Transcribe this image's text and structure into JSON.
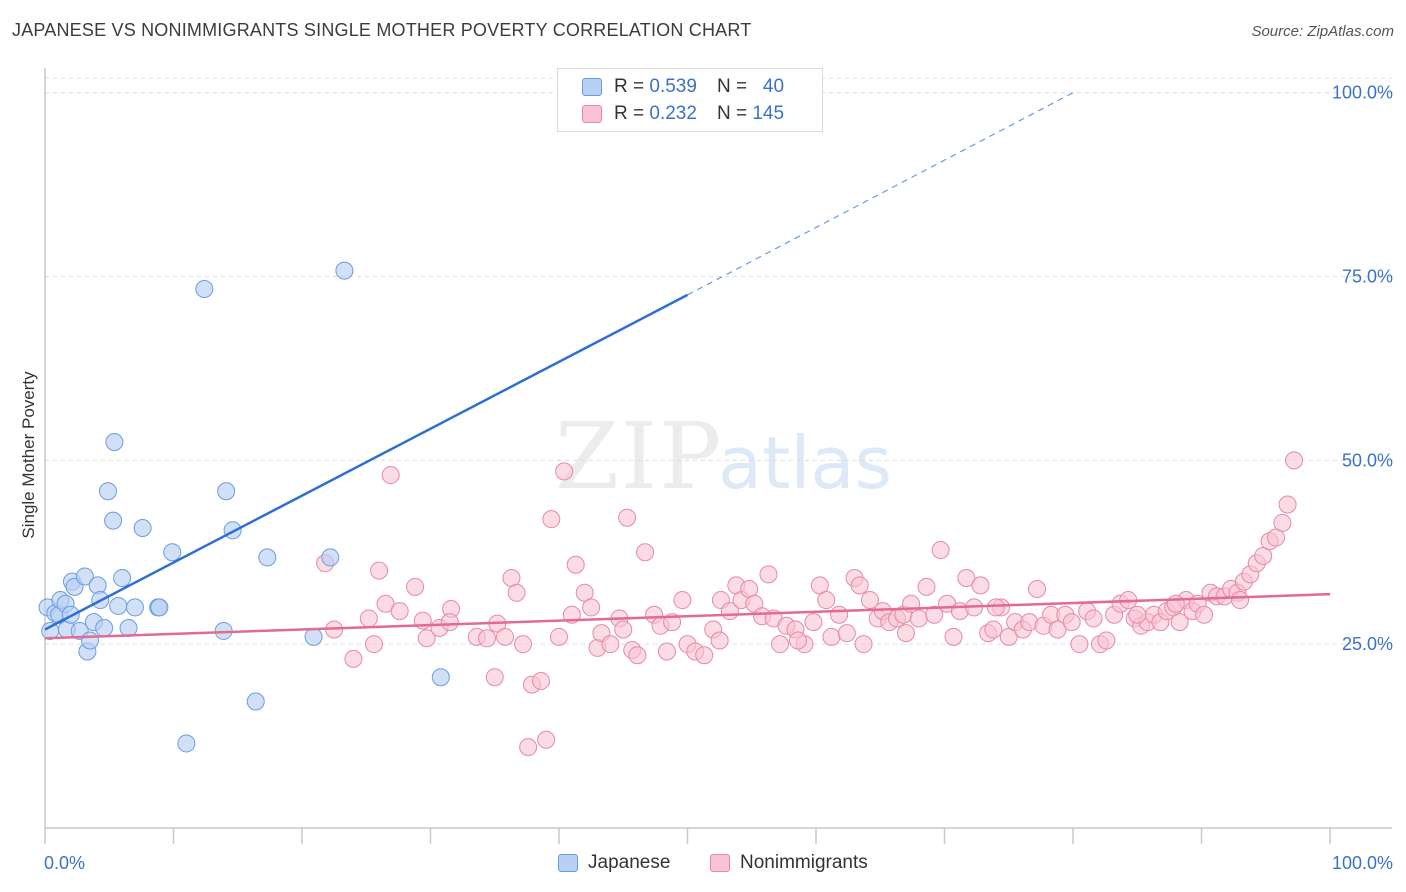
{
  "title": "JAPANESE VS NONIMMIGRANTS SINGLE MOTHER POVERTY CORRELATION CHART",
  "source": "Source: ZipAtlas.com",
  "watermark": {
    "zip": "ZIP",
    "atlas": "atlas"
  },
  "legend": {
    "rows": [
      {
        "r_label": "R =",
        "r_value": "0.539",
        "n_label": "N =",
        "n_value": "40"
      },
      {
        "r_label": "R =",
        "r_value": "0.232",
        "n_label": "N =",
        "n_value": "145"
      }
    ]
  },
  "colors": {
    "japanese_fill": "#b8d0f3",
    "japanese_stroke": "#6a9de0",
    "japanese_line": "#2a6fd1",
    "nonimm_fill": "#f9c3d2",
    "nonimm_stroke": "#e889a7",
    "nonimm_line": "#e36a93",
    "tick_label": "#3a72c8",
    "grid": "#dcdcdc"
  },
  "chart_data": {
    "type": "scatter",
    "title": "JAPANESE VS NONIMMIGRANTS SINGLE MOTHER POVERTY CORRELATION CHART",
    "xlabel": "",
    "ylabel": "Single Mother Poverty",
    "xlim": [
      0,
      100
    ],
    "ylim": [
      0,
      102
    ],
    "x_tick_labels": [
      "0.0%",
      "100.0%"
    ],
    "y_ticks": [
      {
        "value": 25,
        "label": "25.0%"
      },
      {
        "value": 50,
        "label": "50.0%"
      },
      {
        "value": 75,
        "label": "75.0%"
      },
      {
        "value": 100,
        "label": "100.0%"
      }
    ],
    "grid": true,
    "legend_position": "top-center",
    "series": [
      {
        "name": "Japanese",
        "R": 0.539,
        "N": 40,
        "trend": {
          "x0": 0,
          "y0": 27.0,
          "x1": 50,
          "y1": 72.5,
          "dashed_to_x": 80,
          "dashed_to_y": 100
        },
        "points": [
          [
            0.2,
            30.0
          ],
          [
            0.4,
            26.8
          ],
          [
            0.8,
            29.2
          ],
          [
            1.1,
            29.0
          ],
          [
            1.2,
            31.0
          ],
          [
            1.6,
            30.5
          ],
          [
            1.7,
            27.0
          ],
          [
            2.0,
            29.0
          ],
          [
            2.1,
            33.5
          ],
          [
            2.3,
            32.8
          ],
          [
            2.7,
            26.8
          ],
          [
            3.1,
            34.2
          ],
          [
            3.3,
            24.0
          ],
          [
            3.5,
            25.5
          ],
          [
            3.8,
            28.0
          ],
          [
            4.1,
            33.0
          ],
          [
            4.3,
            31.0
          ],
          [
            4.6,
            27.2
          ],
          [
            4.9,
            45.8
          ],
          [
            5.3,
            41.8
          ],
          [
            5.4,
            52.5
          ],
          [
            5.7,
            30.2
          ],
          [
            6.0,
            34.0
          ],
          [
            6.5,
            27.2
          ],
          [
            7.0,
            30.0
          ],
          [
            7.6,
            40.8
          ],
          [
            8.8,
            30.0
          ],
          [
            8.9,
            30.0
          ],
          [
            9.9,
            37.5
          ],
          [
            11.0,
            11.5
          ],
          [
            12.4,
            73.3
          ],
          [
            13.9,
            26.8
          ],
          [
            14.1,
            45.8
          ],
          [
            14.6,
            40.5
          ],
          [
            16.4,
            17.2
          ],
          [
            17.3,
            36.8
          ],
          [
            20.9,
            26.0
          ],
          [
            22.2,
            36.8
          ],
          [
            23.3,
            75.8
          ],
          [
            30.8,
            20.5
          ]
        ]
      },
      {
        "name": "Nonimmigrants",
        "R": 0.232,
        "N": 145,
        "trend": {
          "x0": 0,
          "y0": 25.8,
          "x1": 100,
          "y1": 31.8
        },
        "points": [
          [
            21.8,
            36.0
          ],
          [
            24.0,
            23.0
          ],
          [
            25.2,
            28.5
          ],
          [
            25.6,
            25.0
          ],
          [
            26.0,
            35.0
          ],
          [
            26.5,
            30.5
          ],
          [
            26.9,
            48.0
          ],
          [
            27.6,
            29.5
          ],
          [
            28.8,
            32.8
          ],
          [
            29.4,
            28.2
          ],
          [
            29.7,
            25.8
          ],
          [
            30.7,
            27.2
          ],
          [
            31.6,
            29.8
          ],
          [
            33.6,
            26.0
          ],
          [
            34.4,
            25.8
          ],
          [
            35.0,
            20.5
          ],
          [
            35.2,
            27.8
          ],
          [
            35.8,
            26.0
          ],
          [
            36.3,
            34.0
          ],
          [
            36.7,
            32.0
          ],
          [
            37.2,
            25.0
          ],
          [
            37.6,
            11.0
          ],
          [
            37.9,
            19.5
          ],
          [
            38.6,
            20.0
          ],
          [
            39.0,
            12.0
          ],
          [
            39.4,
            42.0
          ],
          [
            40.4,
            48.5
          ],
          [
            41.0,
            29.0
          ],
          [
            41.3,
            35.8
          ],
          [
            42.0,
            32.0
          ],
          [
            42.5,
            30.0
          ],
          [
            43.0,
            24.5
          ],
          [
            43.3,
            26.5
          ],
          [
            44.0,
            25.0
          ],
          [
            44.7,
            28.5
          ],
          [
            45.3,
            42.2
          ],
          [
            45.7,
            24.2
          ],
          [
            46.1,
            23.5
          ],
          [
            46.7,
            37.5
          ],
          [
            47.4,
            29.0
          ],
          [
            47.9,
            27.5
          ],
          [
            48.4,
            24.0
          ],
          [
            48.8,
            28.0
          ],
          [
            49.6,
            31.0
          ],
          [
            50.0,
            25.0
          ],
          [
            50.6,
            24.0
          ],
          [
            51.3,
            23.5
          ],
          [
            52.0,
            27.0
          ],
          [
            52.6,
            31.0
          ],
          [
            53.3,
            29.5
          ],
          [
            53.8,
            33.0
          ],
          [
            54.2,
            31.0
          ],
          [
            54.8,
            32.5
          ],
          [
            55.2,
            30.5
          ],
          [
            55.8,
            28.8
          ],
          [
            56.3,
            34.5
          ],
          [
            56.7,
            28.5
          ],
          [
            57.2,
            25.0
          ],
          [
            57.7,
            27.5
          ],
          [
            58.4,
            27.0
          ],
          [
            59.1,
            25.0
          ],
          [
            59.8,
            28.0
          ],
          [
            60.3,
            33.0
          ],
          [
            60.8,
            31.0
          ],
          [
            61.2,
            26.0
          ],
          [
            61.8,
            29.0
          ],
          [
            62.4,
            26.5
          ],
          [
            63.0,
            34.0
          ],
          [
            63.4,
            33.0
          ],
          [
            64.2,
            31.0
          ],
          [
            64.8,
            28.5
          ],
          [
            65.2,
            29.5
          ],
          [
            65.7,
            28.0
          ],
          [
            66.3,
            28.5
          ],
          [
            66.8,
            29.0
          ],
          [
            67.4,
            30.5
          ],
          [
            68.0,
            28.5
          ],
          [
            68.6,
            32.8
          ],
          [
            69.2,
            29.0
          ],
          [
            69.7,
            37.8
          ],
          [
            70.2,
            30.5
          ],
          [
            70.7,
            26.0
          ],
          [
            71.2,
            29.5
          ],
          [
            71.7,
            34.0
          ],
          [
            72.3,
            30.0
          ],
          [
            72.8,
            33.0
          ],
          [
            73.4,
            26.5
          ],
          [
            73.8,
            27.0
          ],
          [
            74.4,
            30.0
          ],
          [
            75.0,
            26.0
          ],
          [
            75.5,
            28.0
          ],
          [
            76.1,
            27.0
          ],
          [
            76.6,
            28.0
          ],
          [
            77.2,
            32.5
          ],
          [
            77.7,
            27.5
          ],
          [
            78.3,
            29.0
          ],
          [
            78.8,
            27.0
          ],
          [
            79.4,
            29.0
          ],
          [
            79.9,
            28.0
          ],
          [
            80.5,
            25.0
          ],
          [
            81.1,
            29.5
          ],
          [
            81.6,
            28.5
          ],
          [
            82.1,
            25.0
          ],
          [
            82.6,
            25.5
          ],
          [
            83.2,
            29.0
          ],
          [
            83.7,
            30.5
          ],
          [
            84.3,
            31.0
          ],
          [
            84.8,
            28.5
          ],
          [
            85.3,
            27.5
          ],
          [
            85.8,
            28.0
          ],
          [
            86.3,
            29.0
          ],
          [
            86.8,
            28.0
          ],
          [
            87.3,
            29.5
          ],
          [
            87.8,
            30.0
          ],
          [
            88.3,
            28.0
          ],
          [
            88.8,
            31.0
          ],
          [
            89.3,
            29.5
          ],
          [
            89.7,
            30.5
          ],
          [
            90.2,
            29.0
          ],
          [
            90.7,
            32.0
          ],
          [
            91.2,
            31.5
          ],
          [
            91.8,
            31.5
          ],
          [
            92.3,
            32.5
          ],
          [
            92.8,
            32.0
          ],
          [
            93.3,
            33.5
          ],
          [
            93.8,
            34.5
          ],
          [
            94.3,
            36.0
          ],
          [
            94.8,
            37.0
          ],
          [
            95.3,
            39.0
          ],
          [
            95.8,
            39.5
          ],
          [
            96.3,
            41.5
          ],
          [
            96.7,
            44.0
          ],
          [
            97.2,
            50.0
          ],
          [
            22.5,
            27.0
          ],
          [
            31.5,
            28.0
          ],
          [
            40.0,
            26.0
          ],
          [
            52.5,
            25.5
          ],
          [
            63.7,
            25.0
          ],
          [
            67.0,
            26.5
          ],
          [
            74.0,
            30.0
          ],
          [
            85.0,
            29.0
          ],
          [
            88.0,
            30.5
          ],
          [
            93.0,
            31.0
          ],
          [
            58.6,
            25.5
          ],
          [
            45.0,
            27.0
          ]
        ]
      }
    ]
  }
}
